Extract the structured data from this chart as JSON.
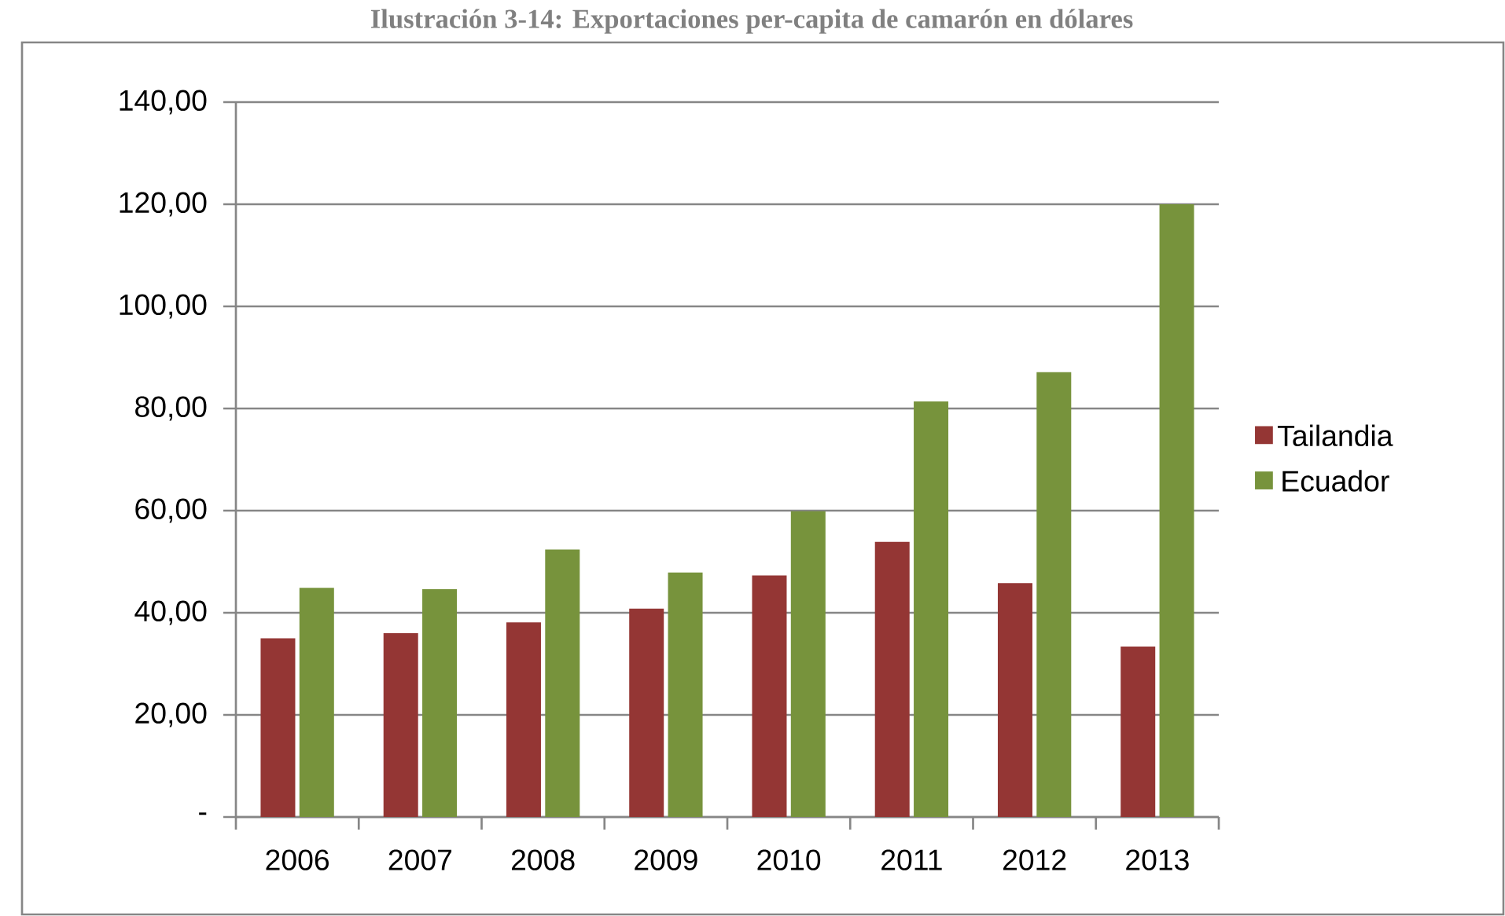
{
  "chart_data": {
    "type": "bar",
    "title": "Ilustración 3-14: Exportaciones per-capita de camarón en dólares",
    "categories": [
      "2006",
      "2007",
      "2008",
      "2009",
      "2010",
      "2011",
      "2012",
      "2013"
    ],
    "series": [
      {
        "name": "Tailandia",
        "color": "#943634",
        "values": [
          35.0,
          36.0,
          38.1,
          40.8,
          47.3,
          53.9,
          45.8,
          33.4
        ]
      },
      {
        "name": "Ecuador",
        "color": "#77933c",
        "values": [
          44.9,
          44.6,
          52.4,
          47.9,
          59.9,
          81.4,
          87.1,
          120.0
        ]
      }
    ],
    "ylim": [
      0,
      140
    ],
    "yticks": [
      {
        "value": 0,
        "label": "-"
      },
      {
        "value": 20,
        "label": "20,00"
      },
      {
        "value": 40,
        "label": "40,00"
      },
      {
        "value": 60,
        "label": "60,00"
      },
      {
        "value": 80,
        "label": "80,00"
      },
      {
        "value": 100,
        "label": "100,00"
      },
      {
        "value": 120,
        "label": "120,00"
      },
      {
        "value": 140,
        "label": "140,00"
      }
    ],
    "grid": "y",
    "legend": "right"
  }
}
